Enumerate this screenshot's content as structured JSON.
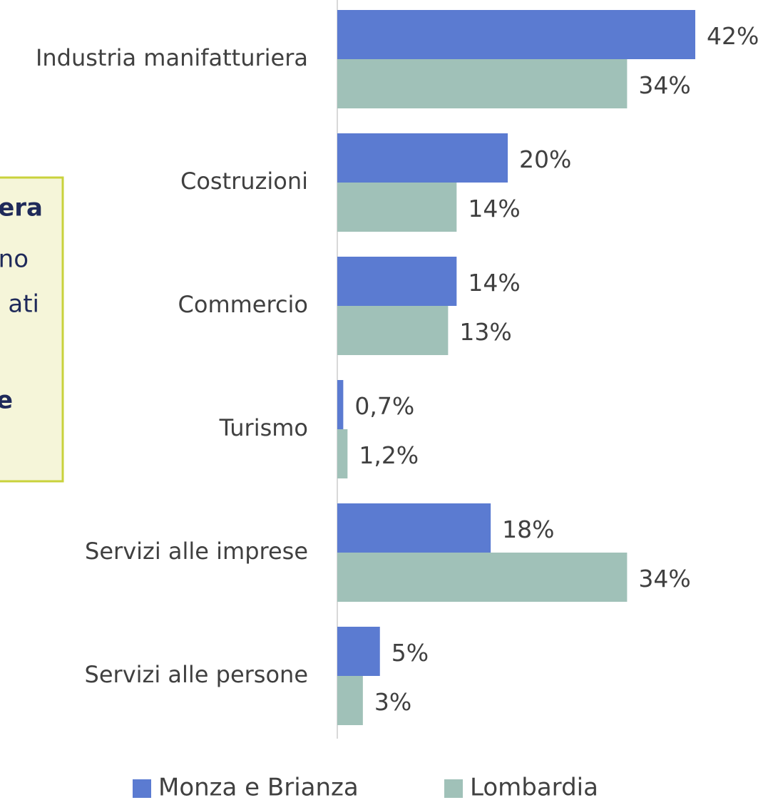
{
  "chart_data": {
    "type": "bar",
    "orientation": "horizontal",
    "categories": [
      "Industria manifatturiera",
      "Costruzioni",
      "Commercio",
      "Turismo",
      "Servizi alle imprese",
      "Servizi alle persone"
    ],
    "series": [
      {
        "name": "Monza e Brianza",
        "color": "#5b7bd1",
        "values": [
          42,
          20,
          14,
          0.7,
          18,
          5
        ],
        "value_labels": [
          "42%",
          "20%",
          "14%",
          "0,7%",
          "18%",
          "5%"
        ]
      },
      {
        "name": "Lombardia",
        "color": "#a0c1b8",
        "values": [
          34,
          14,
          13,
          1.2,
          34,
          3
        ],
        "value_labels": [
          "34%",
          "14%",
          "13%",
          "1,2%",
          "34%",
          "3%"
        ]
      }
    ],
    "xlim": [
      0,
      42
    ],
    "legend": "bottom",
    "annotation": [
      {
        "text": "era",
        "bold": true
      },
      {
        "text": "no",
        "bold": false
      },
      {
        "text": "ati",
        "bold": false
      },
      {
        "text": "e",
        "bold": true
      }
    ]
  }
}
